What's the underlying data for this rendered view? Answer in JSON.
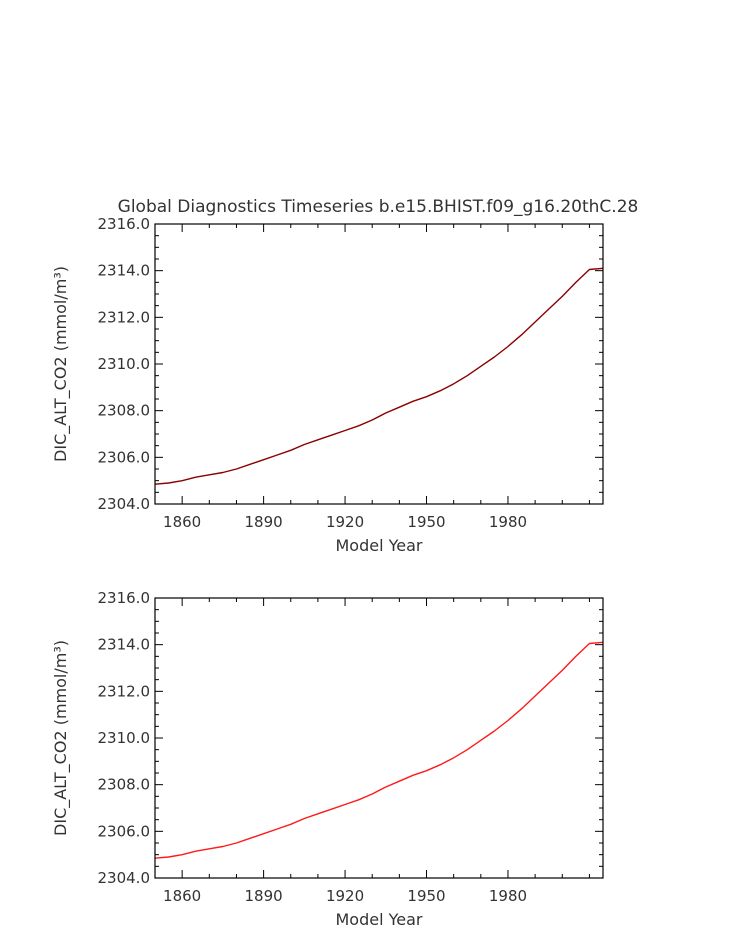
{
  "chart_data": [
    {
      "type": "line",
      "title": "Global Diagnostics Timeseries b.e15.BHIST.f09_g16.20thC.28",
      "xlabel": "Model Year",
      "ylabel": "DIC_ALT_CO2 (mmol/m³)",
      "xlim": [
        1850,
        2015
      ],
      "ylim": [
        2304.0,
        2316.0
      ],
      "xticks": [
        1860,
        1890,
        1920,
        1950,
        1980
      ],
      "yticks": [
        "2304.0",
        "2306.0",
        "2308.0",
        "2310.0",
        "2312.0",
        "2314.0",
        "2316.0"
      ],
      "line_color": "#8b0000",
      "series": [
        {
          "x": [
            1850,
            1855,
            1860,
            1865,
            1870,
            1875,
            1880,
            1885,
            1890,
            1895,
            1900,
            1905,
            1910,
            1915,
            1920,
            1925,
            1930,
            1935,
            1940,
            1945,
            1950,
            1955,
            1960,
            1965,
            1970,
            1975,
            1980,
            1985,
            1990,
            1995,
            2000,
            2005,
            2010,
            2015
          ],
          "values": [
            2304.85,
            2304.9,
            2305.0,
            2305.15,
            2305.25,
            2305.35,
            2305.5,
            2305.7,
            2305.9,
            2306.1,
            2306.3,
            2306.55,
            2306.75,
            2306.95,
            2307.15,
            2307.35,
            2307.6,
            2307.9,
            2308.15,
            2308.4,
            2308.6,
            2308.85,
            2309.15,
            2309.5,
            2309.9,
            2310.3,
            2310.75,
            2311.25,
            2311.8,
            2312.35,
            2312.9,
            2313.5,
            2314.05,
            2314.1
          ]
        }
      ]
    },
    {
      "type": "line",
      "xlabel": "Model Year",
      "ylabel": "DIC_ALT_CO2 (mmol/m³)",
      "xlim": [
        1850,
        2015
      ],
      "ylim": [
        2304.0,
        2316.0
      ],
      "xticks": [
        1860,
        1890,
        1920,
        1950,
        1980
      ],
      "yticks": [
        "2304.0",
        "2306.0",
        "2308.0",
        "2310.0",
        "2312.0",
        "2314.0",
        "2316.0"
      ],
      "line_color": "#ff1a1a",
      "series": [
        {
          "x": [
            1850,
            1855,
            1860,
            1865,
            1870,
            1875,
            1880,
            1885,
            1890,
            1895,
            1900,
            1905,
            1910,
            1915,
            1920,
            1925,
            1930,
            1935,
            1940,
            1945,
            1950,
            1955,
            1960,
            1965,
            1970,
            1975,
            1980,
            1985,
            1990,
            1995,
            2000,
            2005,
            2010,
            2015
          ],
          "values": [
            2304.85,
            2304.9,
            2305.0,
            2305.15,
            2305.25,
            2305.35,
            2305.5,
            2305.7,
            2305.9,
            2306.1,
            2306.3,
            2306.55,
            2306.75,
            2306.95,
            2307.15,
            2307.35,
            2307.6,
            2307.9,
            2308.15,
            2308.4,
            2308.6,
            2308.85,
            2309.15,
            2309.5,
            2309.9,
            2310.3,
            2310.75,
            2311.25,
            2311.8,
            2312.35,
            2312.9,
            2313.5,
            2314.05,
            2314.1
          ]
        }
      ]
    }
  ]
}
